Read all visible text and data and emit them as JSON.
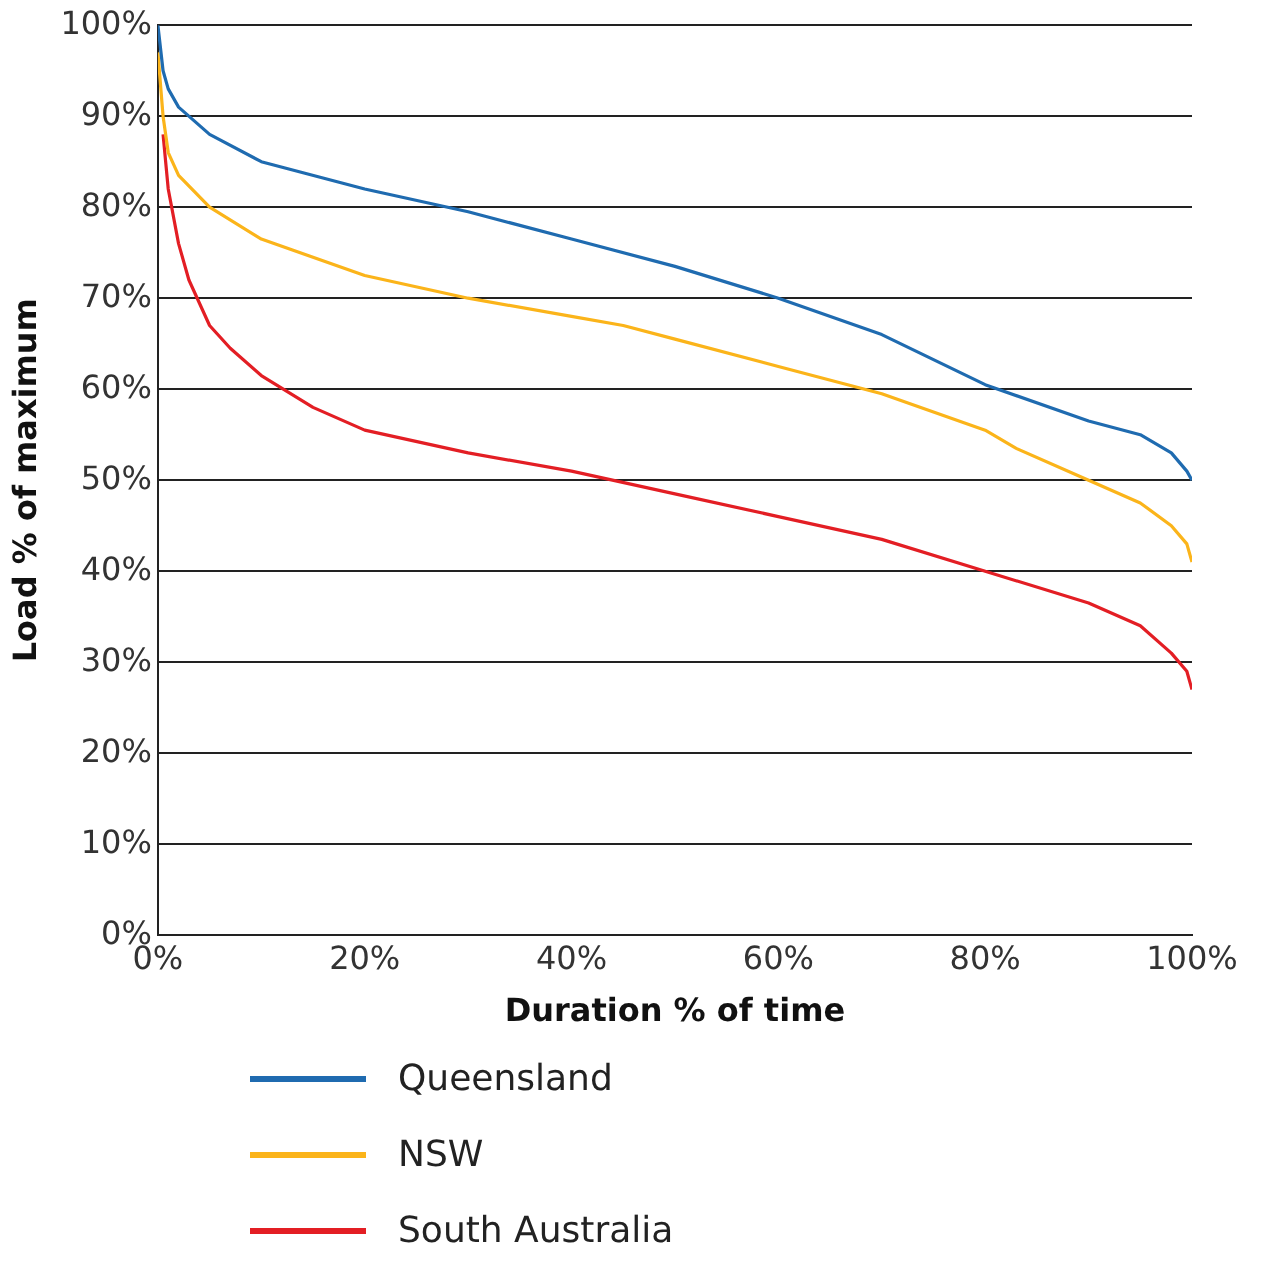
{
  "chart_data": {
    "type": "line",
    "xlabel": "Duration % of time",
    "ylabel": "Load % of maximum",
    "xlim": [
      0,
      100
    ],
    "ylim": [
      0,
      100
    ],
    "xticks": [
      {
        "value": 0,
        "label": "0%"
      },
      {
        "value": 20,
        "label": "20%"
      },
      {
        "value": 40,
        "label": "40%"
      },
      {
        "value": 60,
        "label": "60%"
      },
      {
        "value": 80,
        "label": "80%"
      },
      {
        "value": 100,
        "label": "100%"
      }
    ],
    "yticks": [
      {
        "value": 0,
        "label": "0%"
      },
      {
        "value": 10,
        "label": "10%"
      },
      {
        "value": 20,
        "label": "20%"
      },
      {
        "value": 30,
        "label": "30%"
      },
      {
        "value": 40,
        "label": "40%"
      },
      {
        "value": 50,
        "label": "50%"
      },
      {
        "value": 60,
        "label": "60%"
      },
      {
        "value": 70,
        "label": "70%"
      },
      {
        "value": 80,
        "label": "80%"
      },
      {
        "value": 90,
        "label": "90%"
      },
      {
        "value": 100,
        "label": "100%"
      }
    ],
    "grid": "y",
    "legend": "bottom",
    "marker": "none",
    "line_style": "solid",
    "series": [
      {
        "name": "Queensland",
        "color": "#1f6bb0",
        "x": [
          0,
          0.5,
          1,
          2,
          5,
          10,
          20,
          30,
          40,
          50,
          60,
          70,
          80,
          90,
          95,
          98,
          99.5,
          100
        ],
        "values": [
          100,
          95,
          93,
          91,
          88,
          85,
          82,
          79.5,
          76.5,
          73.5,
          70,
          66,
          60.5,
          56.5,
          55,
          53,
          51,
          50
        ]
      },
      {
        "name": "NSW",
        "color": "#fbb41a",
        "x": [
          0,
          0.5,
          1,
          2,
          5,
          10,
          20,
          30,
          40,
          45,
          50,
          60,
          70,
          80,
          83,
          90,
          95,
          98,
          99.5,
          100
        ],
        "values": [
          97,
          90,
          86,
          83.5,
          80,
          76.5,
          72.5,
          70,
          68,
          67,
          65.5,
          62.5,
          59.5,
          55.5,
          53.5,
          50,
          47.5,
          45,
          43,
          41
        ]
      },
      {
        "name": "South Australia",
        "color": "#e31e24",
        "x": [
          0.5,
          1,
          2,
          3,
          5,
          7,
          10,
          15,
          20,
          30,
          40,
          50,
          60,
          70,
          80,
          90,
          95,
          98,
          99.5,
          100
        ],
        "values": [
          88,
          82,
          76,
          72,
          67,
          64.5,
          61.5,
          58,
          55.5,
          53,
          51,
          48.5,
          46,
          43.5,
          40,
          36.5,
          34,
          31,
          29,
          27
        ]
      }
    ]
  }
}
